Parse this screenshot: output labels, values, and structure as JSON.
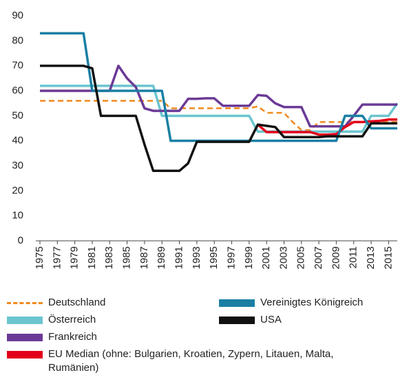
{
  "chart_data": {
    "type": "line",
    "x": [
      1975,
      1976,
      1977,
      1978,
      1979,
      1980,
      1981,
      1982,
      1983,
      1984,
      1985,
      1986,
      1987,
      1988,
      1989,
      1990,
      1991,
      1992,
      1993,
      1994,
      1995,
      1996,
      1997,
      1998,
      1999,
      2000,
      2001,
      2002,
      2003,
      2004,
      2005,
      2006,
      2007,
      2008,
      2009,
      2010,
      2011,
      2012,
      2013,
      2014,
      2015,
      2016
    ],
    "xlim": [
      1975,
      2016
    ],
    "xticks": [
      1975,
      1977,
      1979,
      1981,
      1983,
      1985,
      1987,
      1989,
      1991,
      1993,
      1995,
      1997,
      1999,
      2001,
      2003,
      2005,
      2007,
      2009,
      2011,
      2013,
      2015
    ],
    "ylim": [
      0,
      90
    ],
    "yticks": [
      0,
      10,
      20,
      30,
      40,
      50,
      60,
      70,
      80,
      90
    ],
    "grid": false,
    "series": [
      {
        "name": "Deutschland",
        "color": "#f08a1c",
        "dashed": true,
        "values": [
          56,
          56,
          56,
          56,
          56,
          56,
          56,
          56,
          56,
          56,
          56,
          56,
          56,
          56,
          56,
          53,
          53,
          53,
          53,
          53,
          53,
          53,
          53,
          53,
          53,
          53.8,
          51.2,
          51.2,
          51.2,
          47.5,
          44.3,
          44.3,
          47.5,
          47.5,
          47.5,
          47.5,
          47.5,
          47.5,
          47.5,
          47.5,
          47.5,
          47.5
        ]
      },
      {
        "name": "Österreich",
        "color": "#6cc5cf",
        "values": [
          62,
          62,
          62,
          62,
          62,
          62,
          62,
          62,
          62,
          62,
          62,
          62,
          62,
          62,
          50,
          50,
          50,
          50,
          50,
          50,
          50,
          50,
          50,
          50,
          50,
          43.7,
          43.7,
          43.7,
          43.7,
          43.7,
          43.7,
          43.7,
          43.7,
          43.7,
          43.7,
          43.7,
          43.7,
          43.7,
          50,
          50,
          50,
          55
        ]
      },
      {
        "name": "Frankreich",
        "color": "#6b3a96",
        "values": [
          60,
          60,
          60,
          60,
          60,
          60,
          60,
          60,
          60,
          70,
          65,
          61.5,
          53,
          52,
          52,
          52,
          52,
          56.8,
          56.8,
          57,
          57,
          54,
          54,
          54,
          54,
          58.3,
          58,
          55,
          53.5,
          53.5,
          53.5,
          45.8,
          45.8,
          45.8,
          45.8,
          45.8,
          50,
          54.5,
          54.5,
          54.5,
          54.5,
          54.5
        ]
      },
      {
        "name": "EU Median (ohne: Bulgarien, Kroatien, Zypern, Litauen, Malta, Rumänien)",
        "color": "#e3001b",
        "values": [
          null,
          null,
          null,
          null,
          null,
          null,
          null,
          null,
          null,
          null,
          null,
          null,
          null,
          null,
          null,
          null,
          null,
          null,
          null,
          null,
          null,
          null,
          null,
          null,
          null,
          46.5,
          43.5,
          43.5,
          43.5,
          43.5,
          43.5,
          43.5,
          42.5,
          42.5,
          42.7,
          45.5,
          47.5,
          47.5,
          47.8,
          48,
          48.5,
          48.5
        ]
      },
      {
        "name": "Vereinigtes Königreich",
        "color": "#1a7fa3",
        "values": [
          83,
          83,
          83,
          83,
          83,
          83,
          60,
          60,
          60,
          60,
          60,
          60,
          60,
          60,
          60,
          40,
          40,
          40,
          40,
          40,
          40,
          40,
          40,
          40,
          40,
          40,
          40,
          40,
          40,
          40,
          40,
          40,
          40,
          40,
          40,
          50,
          50,
          50,
          45,
          45,
          45,
          45
        ]
      },
      {
        "name": "USA",
        "color": "#111111",
        "values": [
          70,
          70,
          70,
          70,
          70,
          70,
          69,
          50,
          50,
          50,
          50,
          50,
          38.5,
          28,
          28,
          28,
          28,
          31,
          39.6,
          39.6,
          39.6,
          39.6,
          39.6,
          39.6,
          39.6,
          46.5,
          46,
          45.5,
          41.5,
          41.5,
          41.5,
          41.5,
          41.5,
          41.8,
          41.8,
          41.8,
          41.8,
          41.8,
          47,
          47,
          47,
          47
        ]
      }
    ]
  }
}
